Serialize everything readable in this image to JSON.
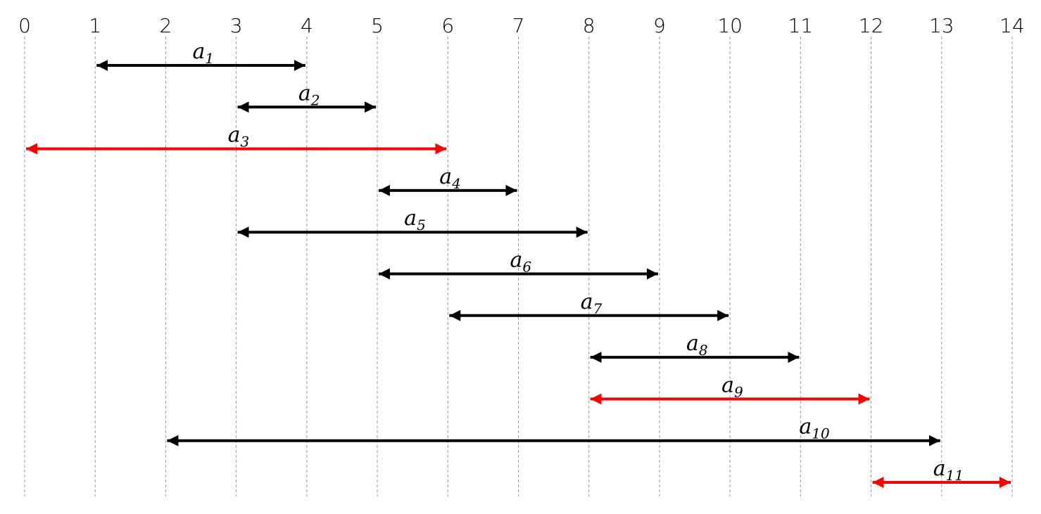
{
  "axis": {
    "ticks": [
      0,
      1,
      2,
      3,
      4,
      5,
      6,
      7,
      8,
      9,
      10,
      11,
      12,
      13,
      14
    ]
  },
  "intervals": [
    {
      "label": "a",
      "subscript": "1",
      "start": 1,
      "end": 4,
      "color": "#000000"
    },
    {
      "label": "a",
      "subscript": "2",
      "start": 3,
      "end": 5,
      "color": "#000000"
    },
    {
      "label": "a",
      "subscript": "3",
      "start": 0,
      "end": 6,
      "color": "#ff0000"
    },
    {
      "label": "a",
      "subscript": "4",
      "start": 5,
      "end": 7,
      "color": "#000000"
    },
    {
      "label": "a",
      "subscript": "5",
      "start": 3,
      "end": 8,
      "color": "#000000"
    },
    {
      "label": "a",
      "subscript": "6",
      "start": 5,
      "end": 9,
      "color": "#000000"
    },
    {
      "label": "a",
      "subscript": "7",
      "start": 6,
      "end": 10,
      "color": "#000000"
    },
    {
      "label": "a",
      "subscript": "8",
      "start": 8,
      "end": 11,
      "color": "#000000"
    },
    {
      "label": "a",
      "subscript": "9",
      "start": 8,
      "end": 12,
      "color": "#ff0000"
    },
    {
      "label": "a",
      "subscript": "10",
      "start": 2,
      "end": 13,
      "color": "#000000"
    },
    {
      "label": "a",
      "subscript": "11",
      "start": 12,
      "end": 14,
      "color": "#ff0000"
    }
  ]
}
